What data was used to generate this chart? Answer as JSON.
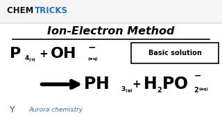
{
  "bg_color": "#ffffff",
  "header_bg": "#f5f5f5",
  "header_sep_color": "#cccccc",
  "header_chem": "CHEM ",
  "header_tricks": "TRICKS",
  "header_chem_color": "#111111",
  "header_tricks_color": "#2272b8",
  "title": "Ion-Electron Method",
  "box_label": "Basic solution",
  "footer_text": "Aurora chemistry",
  "footer_color": "#2272b8",
  "black": "#000000",
  "white": "#ffffff"
}
